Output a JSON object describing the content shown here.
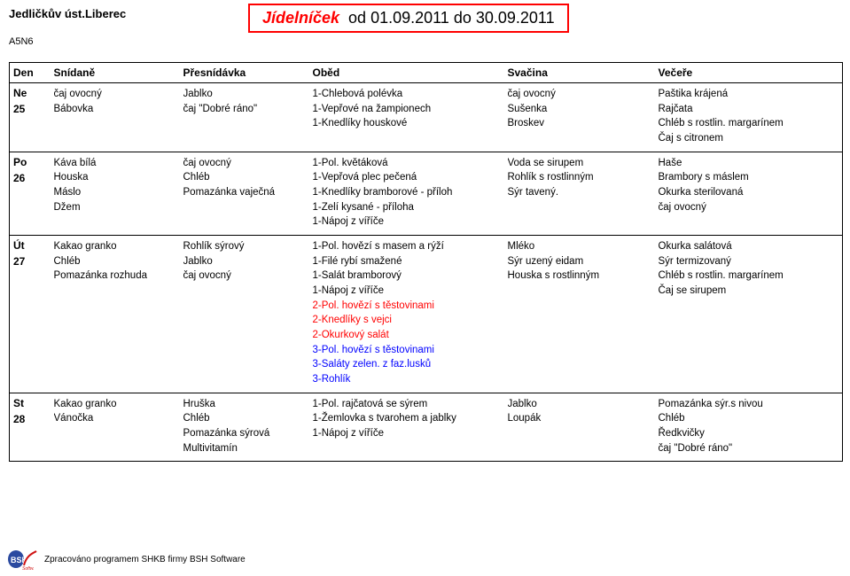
{
  "header": {
    "org_name": "Jedličkův úst.Liberec",
    "org_code": "A5N6",
    "title_word": "Jídelníček",
    "title_dates": "od 01.09.2011 do 30.09.2011"
  },
  "columns": {
    "day": "Den",
    "breakfast": "Snídaně",
    "snack1": "Přesnídávka",
    "lunch": "Oběd",
    "snack2": "Svačina",
    "dinner": "Večeře"
  },
  "line_colors": {
    "black": "#000000",
    "red": "#ff0000",
    "blue": "#0000ff"
  },
  "rows": [
    {
      "wd": "Ne",
      "num": "25",
      "breakfast": [
        "čaj ovocný",
        "Bábovka"
      ],
      "snack1": [
        "Jablko",
        "čaj \"Dobré ráno\""
      ],
      "lunch": [
        [
          "1-Chlebová polévka",
          "black"
        ],
        [
          "1-Vepřové na žampionech",
          "black"
        ],
        [
          "1-Knedlíky houskové",
          "black"
        ]
      ],
      "snack2": [
        "čaj ovocný",
        "Sušenka",
        "Broskev"
      ],
      "dinner": [
        "Paštika krájená",
        "Rajčata",
        "Chléb s rostlin. margarínem",
        "Čaj s citronem"
      ]
    },
    {
      "wd": "Po",
      "num": "26",
      "breakfast": [
        "Káva bílá",
        "Houska",
        "Máslo",
        "Džem"
      ],
      "snack1": [
        "čaj ovocný",
        "Chléb",
        "Pomazánka vaječná"
      ],
      "lunch": [
        [
          "1-Pol. květáková",
          "black"
        ],
        [
          "1-Vepřová plec pečená",
          "black"
        ],
        [
          "1-Knedlíky bramborové - příloh",
          "black"
        ],
        [
          "1-Zelí kysané - příloha",
          "black"
        ],
        [
          "1-Nápoj z víříče",
          "black"
        ]
      ],
      "snack2": [
        "Voda se sirupem",
        "Rohlík s rostlinným",
        "Sýr tavený."
      ],
      "dinner": [
        "Haše",
        "Brambory s máslem",
        "Okurka sterilovaná",
        "čaj ovocný"
      ]
    },
    {
      "wd": "Út",
      "num": "27",
      "breakfast": [
        "Kakao granko",
        "Chléb",
        "Pomazánka rozhuda"
      ],
      "snack1": [
        "Rohlík sýrový",
        "Jablko",
        "čaj ovocný"
      ],
      "lunch": [
        [
          "1-Pol. hovězí s masem a rýží",
          "black"
        ],
        [
          "1-Filé rybí smažené",
          "black"
        ],
        [
          "1-Salát bramborový",
          "black"
        ],
        [
          "1-Nápoj z víříče",
          "black"
        ],
        [
          "2-Pol. hovězí s těstovinami",
          "red"
        ],
        [
          "2-Knedlíky s vejci",
          "red"
        ],
        [
          "2-Okurkový salát",
          "red"
        ],
        [
          "3-Pol. hovězí s těstovinami",
          "blue"
        ],
        [
          "3-Saláty zelen. z faz.lusků",
          "blue"
        ],
        [
          "3-Rohlík",
          "blue"
        ]
      ],
      "snack2": [
        "Mléko",
        "Sýr uzený eidam",
        "Houska s rostlinným"
      ],
      "dinner": [
        "Okurka salátová",
        "Sýr termizovaný",
        "Chléb s rostlin. margarínem",
        "Čaj se sirupem"
      ]
    },
    {
      "wd": "St",
      "num": "28",
      "breakfast": [
        "Kakao granko",
        "Vánočka"
      ],
      "snack1": [
        "Hruška",
        "Chléb",
        "Pomazánka sýrová",
        "Multivitamín"
      ],
      "lunch": [
        [
          "1-Pol. rajčatová se sýrem",
          "black"
        ],
        [
          "1-Žemlovka s tvarohem a jablky",
          "black"
        ],
        [
          "1-Nápoj z víříče",
          "black"
        ]
      ],
      "snack2": [
        "Jablko",
        "Loupák"
      ],
      "dinner": [
        "Pomazánka sýr.s nivou",
        "Chléb",
        "Ředkvičky",
        "čaj \"Dobré ráno\""
      ]
    }
  ],
  "footer": {
    "credit": "Zpracováno programem SHKB firmy BSH Software"
  }
}
